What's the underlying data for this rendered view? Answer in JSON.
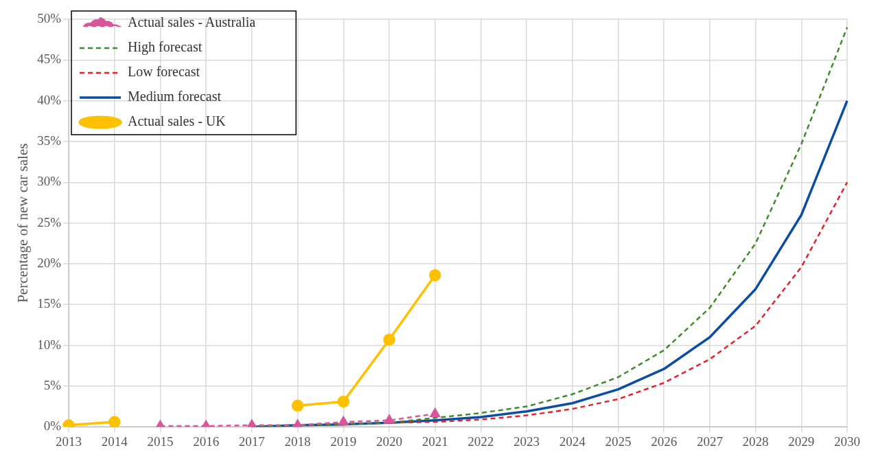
{
  "chart_data": {
    "type": "line",
    "ylabel": "Percentage of new car sales",
    "categories": [
      "2013",
      "2014",
      "2015",
      "2016",
      "2017",
      "2018",
      "2019",
      "2020",
      "2021",
      "2022",
      "2023",
      "2024",
      "2025",
      "2026",
      "2027",
      "2028",
      "2029",
      "2030"
    ],
    "series": [
      {
        "name": "Actual sales - Australia",
        "color": "#d9559a",
        "marker": "triangle",
        "line_style": "dashed",
        "values": [
          null,
          null,
          0.1,
          0.1,
          0.2,
          0.2,
          0.6,
          0.8,
          1.6,
          null,
          null,
          null,
          null,
          null,
          null,
          null,
          null,
          null
        ]
      },
      {
        "name": "High forecast",
        "color": "#3f8a2e",
        "marker": "none",
        "line_style": "dashed",
        "values": [
          null,
          null,
          null,
          null,
          0,
          0.2,
          0.3,
          0.5,
          1.1,
          1.7,
          2.5,
          4.0,
          6.1,
          9.4,
          14.6,
          22.5,
          34.7,
          49
        ]
      },
      {
        "name": "Low forecast",
        "color": "#e8202a",
        "marker": "none",
        "line_style": "dashed",
        "values": [
          null,
          null,
          null,
          null,
          0,
          0.2,
          0.3,
          0.5,
          0.6,
          0.9,
          1.4,
          2.2,
          3.4,
          5.4,
          8.3,
          12.4,
          19.6,
          30
        ]
      },
      {
        "name": "Medium forecast",
        "color": "#0a4ea3",
        "marker": "none",
        "line_style": "solid",
        "values": [
          null,
          null,
          null,
          null,
          0,
          0.2,
          0.3,
          0.5,
          0.8,
          1.2,
          1.9,
          2.9,
          4.6,
          7.1,
          11.0,
          16.9,
          26,
          40
        ]
      },
      {
        "name": "Actual sales - UK",
        "color": "#ffc000",
        "marker": "circle",
        "line_style": "solid",
        "values": [
          0.2,
          0.6,
          null,
          null,
          null,
          2.6,
          3.1,
          10.7,
          18.6,
          null,
          null,
          null,
          null,
          null,
          null,
          null,
          null,
          null
        ]
      }
    ],
    "ylim": [
      0,
      50
    ],
    "yticks": [
      {
        "value": 0,
        "label": "0%"
      },
      {
        "value": 5,
        "label": "5%"
      },
      {
        "value": 10,
        "label": "10%"
      },
      {
        "value": 15,
        "label": "15%"
      },
      {
        "value": 20,
        "label": "20%"
      },
      {
        "value": 25,
        "label": "25%"
      },
      {
        "value": 30,
        "label": "30%"
      },
      {
        "value": 35,
        "label": "35%"
      },
      {
        "value": 40,
        "label": "40%"
      },
      {
        "value": 45,
        "label": "45%"
      },
      {
        "value": 50,
        "label": "50%"
      }
    ],
    "grid": true,
    "legend": "top left"
  }
}
